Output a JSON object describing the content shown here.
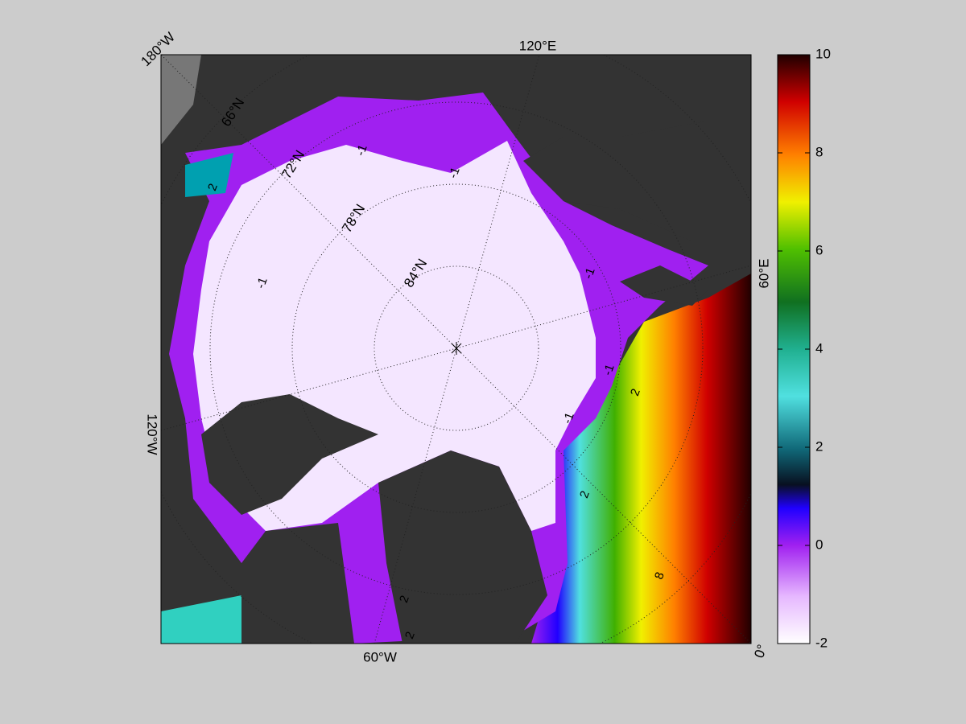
{
  "map": {
    "meridian_labels": [
      "180°W",
      "120°E",
      "60°E",
      "0°",
      "60°W",
      "120°W"
    ],
    "parallel_labels": [
      "66°N",
      "72°N",
      "78°N",
      "84°N"
    ],
    "contour_labels": [
      "-1",
      "-1",
      "-1",
      "-1",
      "-1",
      "-1",
      "2",
      "2",
      "2",
      "2",
      "2",
      "8"
    ]
  },
  "colorbar": {
    "lim": [
      -2,
      10
    ],
    "ticks": [
      -2,
      0,
      2,
      4,
      6,
      8,
      10
    ]
  }
}
